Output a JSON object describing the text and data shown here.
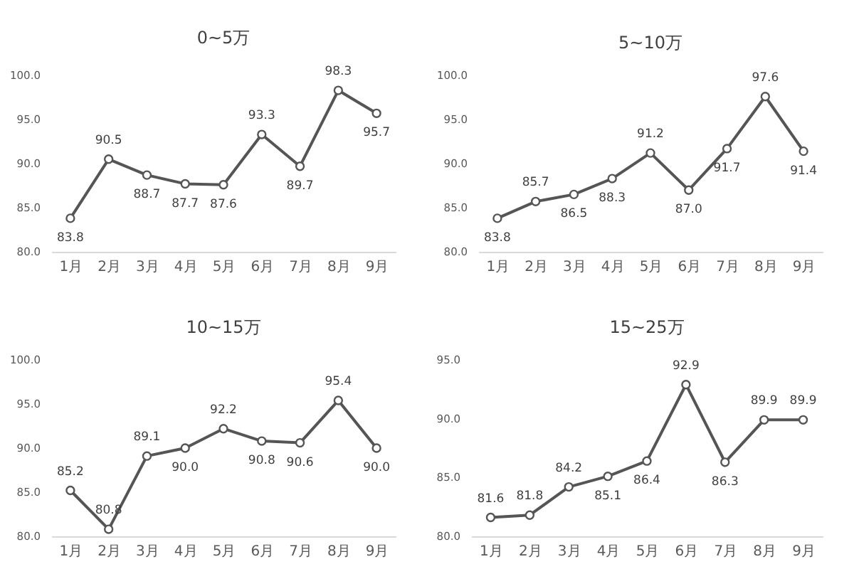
{
  "chart_data": [
    {
      "type": "line",
      "title": "0~5万",
      "categories": [
        "1月",
        "2月",
        "3月",
        "4月",
        "5月",
        "6月",
        "7月",
        "8月",
        "9月"
      ],
      "values": [
        83.8,
        90.5,
        88.7,
        87.7,
        87.6,
        93.3,
        89.7,
        98.3,
        95.7
      ],
      "value_labels": [
        "83.8",
        "90.5",
        "88.7",
        "87.7",
        "87.6",
        "93.3",
        "89.7",
        "98.3",
        "95.7"
      ],
      "color": "#555555",
      "marker": "circle",
      "ylim": [
        80,
        100
      ],
      "yticks": [
        {
          "value": 80,
          "label": "80.0"
        },
        {
          "value": 85,
          "label": "85.0"
        },
        {
          "value": 90,
          "label": "90.0"
        },
        {
          "value": 95,
          "label": "95.0"
        },
        {
          "value": 100,
          "label": "100.0"
        }
      ]
    },
    {
      "type": "line",
      "title": "5~10万",
      "categories": [
        "1月",
        "2月",
        "3月",
        "4月",
        "5月",
        "6月",
        "7月",
        "8月",
        "9月"
      ],
      "values": [
        83.8,
        85.7,
        86.5,
        88.3,
        91.2,
        87.0,
        91.7,
        97.6,
        91.4
      ],
      "value_labels": [
        "83.8",
        "85.7",
        "86.5",
        "88.3",
        "91.2",
        "87.0",
        "91.7",
        "97.6",
        "91.4"
      ],
      "color": "#555555",
      "marker": "circle",
      "ylim": [
        80,
        100
      ],
      "yticks": [
        {
          "value": 80,
          "label": "80.0"
        },
        {
          "value": 85,
          "label": "85.0"
        },
        {
          "value": 90,
          "label": "90.0"
        },
        {
          "value": 95,
          "label": "95.0"
        },
        {
          "value": 100,
          "label": "100.0"
        }
      ]
    },
    {
      "type": "line",
      "title": "10~15万",
      "categories": [
        "1月",
        "2月",
        "3月",
        "4月",
        "5月",
        "6月",
        "7月",
        "8月",
        "9月"
      ],
      "values": [
        85.2,
        80.8,
        89.1,
        90.0,
        92.2,
        90.8,
        90.6,
        95.4,
        90.0
      ],
      "value_labels": [
        "85.2",
        "80.8",
        "89.1",
        "90.0",
        "92.2",
        "90.8",
        "90.6",
        "95.4",
        "90.0"
      ],
      "color": "#555555",
      "marker": "circle",
      "ylim": [
        80,
        100
      ],
      "yticks": [
        {
          "value": 80,
          "label": "80.0"
        },
        {
          "value": 85,
          "label": "85.0"
        },
        {
          "value": 90,
          "label": "90.0"
        },
        {
          "value": 95,
          "label": "95.0"
        },
        {
          "value": 100,
          "label": "100.0"
        }
      ]
    },
    {
      "type": "line",
      "title": "15~25万",
      "categories": [
        "1月",
        "2月",
        "3月",
        "4月",
        "5月",
        "6月",
        "7月",
        "8月",
        "9月"
      ],
      "values": [
        81.6,
        81.8,
        84.2,
        85.1,
        86.4,
        92.9,
        86.3,
        89.9,
        89.9
      ],
      "value_labels": [
        "81.6",
        "81.8",
        "84.2",
        "85.1",
        "86.4",
        "92.9",
        "86.3",
        "89.9",
        "89.9"
      ],
      "color": "#555555",
      "marker": "circle",
      "ylim": [
        80,
        95
      ],
      "yticks": [
        {
          "value": 80,
          "label": "80.0"
        },
        {
          "value": 85,
          "label": "85.0"
        },
        {
          "value": 90,
          "label": "90.0"
        },
        {
          "value": 95,
          "label": "95.0"
        }
      ]
    }
  ]
}
